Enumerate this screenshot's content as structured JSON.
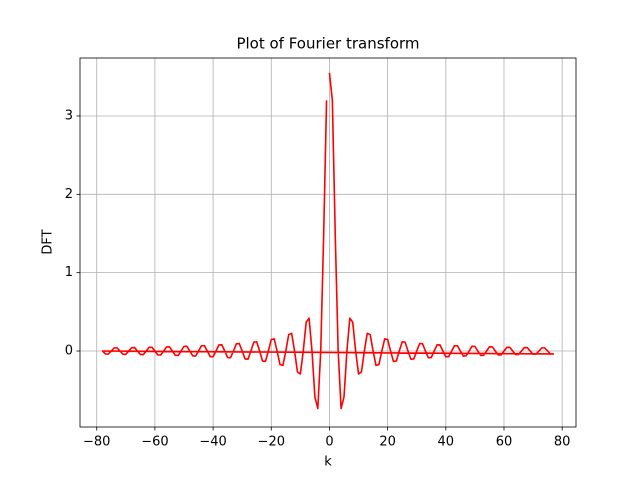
{
  "chart_data": {
    "type": "line",
    "title": "Plot of Fourier transform",
    "xlabel": "k",
    "ylabel": "DFT",
    "x": [
      0,
      1,
      2,
      3,
      4,
      5,
      6,
      7,
      8,
      9,
      10,
      11,
      12,
      13,
      14,
      15,
      16,
      17,
      18,
      19,
      20,
      21,
      22,
      23,
      24,
      25,
      26,
      27,
      28,
      29,
      30,
      31,
      32,
      33,
      34,
      35,
      36,
      37,
      38,
      39,
      40,
      41,
      42,
      43,
      44,
      45,
      46,
      47,
      48,
      49,
      50,
      51,
      52,
      53,
      54,
      55,
      56,
      57,
      58,
      59,
      60,
      61,
      62,
      63,
      64,
      65,
      66,
      67,
      68,
      69,
      70,
      71,
      72,
      73,
      74,
      75,
      76,
      77,
      -78,
      -77,
      -76,
      -75,
      -74,
      -73,
      -72,
      -71,
      -70,
      -69,
      -68,
      -67,
      -66,
      -65,
      -64,
      -63,
      -62,
      -61,
      -60,
      -59,
      -58,
      -57,
      -56,
      -55,
      -54,
      -53,
      -52,
      -51,
      -50,
      -49,
      -48,
      -47,
      -46,
      -45,
      -44,
      -43,
      -42,
      -41,
      -40,
      -39,
      -38,
      -37,
      -36,
      -35,
      -34,
      -33,
      -32,
      -31,
      -30,
      -29,
      -28,
      -27,
      -26,
      -25,
      -24,
      -23,
      -22,
      -21,
      -20,
      -19,
      -18,
      -17,
      -16,
      -15,
      -14,
      -13,
      -12,
      -11,
      -10,
      -9,
      -8,
      -7,
      -6,
      -5,
      -4,
      -3,
      -2,
      -1
    ],
    "values": [
      3.55,
      3.2,
      1.468,
      0,
      -0.734,
      -0.587,
      0,
      0.419,
      0.367,
      0,
      -0.294,
      -0.267,
      0,
      0.226,
      0.21,
      0,
      -0.184,
      -0.173,
      0,
      0.155,
      0.147,
      0,
      -0.133,
      -0.128,
      0,
      0.117,
      0.113,
      0,
      -0.105,
      -0.101,
      0,
      0.095,
      0.092,
      0,
      -0.086,
      -0.084,
      0,
      0.079,
      0.077,
      0,
      -0.073,
      -0.072,
      0,
      0.068,
      0.067,
      0,
      -0.064,
      -0.062,
      0,
      0.06,
      0.059,
      0,
      -0.056,
      -0.055,
      0,
      0.053,
      0.052,
      0,
      -0.051,
      -0.05,
      0,
      0.048,
      0.047,
      0,
      -0.046,
      -0.045,
      0,
      0.044,
      0.043,
      0,
      -0.042,
      -0.041,
      0,
      0.04,
      0.04,
      0,
      -0.039,
      -0.038,
      0,
      -0.038,
      -0.039,
      0,
      0.04,
      0.04,
      0,
      -0.041,
      -0.042,
      0,
      0.043,
      0.044,
      0,
      -0.045,
      -0.046,
      0,
      0.047,
      0.048,
      0,
      -0.05,
      -0.051,
      0,
      0.052,
      0.053,
      0,
      -0.055,
      -0.056,
      0,
      0.059,
      0.06,
      0,
      -0.062,
      -0.064,
      0,
      0.067,
      0.068,
      0,
      -0.072,
      -0.073,
      0,
      0.077,
      0.079,
      0,
      -0.084,
      -0.086,
      0,
      0.092,
      0.095,
      0,
      -0.101,
      -0.105,
      0,
      0.113,
      0.117,
      0,
      -0.128,
      -0.133,
      0,
      0.147,
      0.155,
      0,
      -0.173,
      -0.184,
      0,
      0.21,
      0.226,
      0,
      -0.267,
      -0.294,
      0,
      0.367,
      0.419,
      0,
      -0.587,
      -0.734,
      0,
      1.468,
      3.2
    ],
    "color": "#ff0000",
    "xlim": [
      -85.75,
      84.75
    ],
    "ylim": [
      -0.97,
      3.74
    ],
    "xticks": [
      {
        "value": -80,
        "label": "−80"
      },
      {
        "value": -60,
        "label": "−60"
      },
      {
        "value": -40,
        "label": "−40"
      },
      {
        "value": -20,
        "label": "−20"
      },
      0,
      20,
      40,
      60,
      80
    ],
    "yticks": [
      0,
      1,
      2,
      3
    ],
    "grid": true
  }
}
